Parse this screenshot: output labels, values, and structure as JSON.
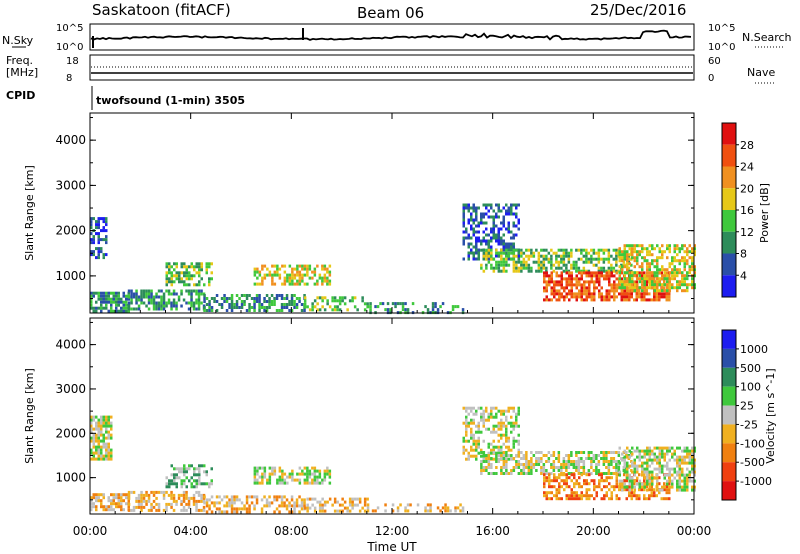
{
  "header": {
    "station": "Saskatoon (fitACF)",
    "beam": "Beam 06",
    "date": "25/Dec/2016"
  },
  "strip_panels": {
    "nsky_label": "N.Sky",
    "nsearch_label": "N.Search",
    "nsky_ticks": [
      "10^5",
      "10^0"
    ],
    "nsearch_ticks": [
      "10^5",
      "10^0"
    ],
    "freq_label_line1": "Freq.",
    "freq_label_line2": "[MHz]",
    "freq_ticks": [
      "18",
      "8"
    ],
    "nave_label": "Nave",
    "nave_ticks": [
      "60",
      "0"
    ],
    "cpid_label": "CPID",
    "cpid_text": "twofsound (1-min) 3505"
  },
  "chart_data": [
    {
      "type": "heatmap",
      "name": "power-panel",
      "parameter": "Power",
      "colorbar_label": "Power [dB]",
      "colorbar_ticks": [
        "4",
        "8",
        "12",
        "16",
        "20",
        "24",
        "28"
      ],
      "colors": [
        "#1d1df0",
        "#2a4fa8",
        "#2d8c5a",
        "#3fc83c",
        "#e6c818",
        "#f09020",
        "#f05010",
        "#e01010"
      ],
      "ylabel": "Slant Range [km]",
      "ylim": [
        180,
        4600
      ],
      "yticks": [
        "1000",
        "2000",
        "3000",
        "4000"
      ],
      "xlabel": "",
      "xticks": [
        "00:00",
        "04:00",
        "08:00",
        "12:00",
        "16:00",
        "20:00",
        "00:00"
      ],
      "xlim_hours": [
        0,
        24
      ],
      "scatter_regions": [
        {
          "t": [
            0.0,
            1.5
          ],
          "r": [
            250,
            650
          ],
          "level": 2,
          "density": 0.75
        },
        {
          "t": [
            0.0,
            0.6
          ],
          "r": [
            1400,
            2300
          ],
          "level": 1,
          "density": 0.65
        },
        {
          "t": [
            1.5,
            4.5
          ],
          "r": [
            280,
            700
          ],
          "level": 2,
          "density": 0.6
        },
        {
          "t": [
            3.0,
            4.8
          ],
          "r": [
            800,
            1300
          ],
          "level": 3,
          "density": 0.55
        },
        {
          "t": [
            4.5,
            8.5
          ],
          "r": [
            250,
            600
          ],
          "level": 2,
          "density": 0.55
        },
        {
          "t": [
            6.5,
            9.5
          ],
          "r": [
            850,
            1250
          ],
          "level": 4,
          "density": 0.6
        },
        {
          "t": [
            8.5,
            11.0
          ],
          "r": [
            250,
            550
          ],
          "level": 3,
          "density": 0.5
        },
        {
          "t": [
            11.0,
            14.8
          ],
          "r": [
            220,
            420
          ],
          "level": 2,
          "density": 0.35
        },
        {
          "t": [
            14.8,
            17.0
          ],
          "r": [
            1400,
            2600
          ],
          "level": 1,
          "density": 0.55
        },
        {
          "t": [
            15.5,
            21.5
          ],
          "r": [
            1100,
            1600
          ],
          "level": 3,
          "density": 0.6
        },
        {
          "t": [
            18.0,
            23.0
          ],
          "r": [
            500,
            1100
          ],
          "level": 6,
          "density": 0.7
        },
        {
          "t": [
            21.0,
            24.0
          ],
          "r": [
            700,
            1700
          ],
          "level": 4,
          "density": 0.65
        }
      ]
    },
    {
      "type": "heatmap",
      "name": "velocity-panel",
      "parameter": "Velocity",
      "colorbar_label": "Velocity [m s^-1]",
      "colorbar_ticks": [
        "1000",
        "500",
        "100",
        "25",
        "-25",
        "-100",
        "-500",
        "-1000"
      ],
      "colors": [
        "#1d1df0",
        "#2a4fa8",
        "#2d8c5a",
        "#3fc83c",
        "#c0c0c0",
        "#f0b020",
        "#f08010",
        "#f04010",
        "#e01010"
      ],
      "ylabel": "Slant Range [km]",
      "ylim": [
        180,
        4600
      ],
      "yticks": [
        "1000",
        "2000",
        "3000",
        "4000"
      ],
      "xlabel": "Time UT",
      "xticks": [
        "00:00",
        "04:00",
        "08:00",
        "12:00",
        "16:00",
        "20:00",
        "00:00"
      ],
      "xlim_hours": [
        0,
        24
      ],
      "scatter_regions": [
        {
          "t": [
            0.0,
            1.5
          ],
          "r": [
            250,
            650
          ],
          "level": 5,
          "density": 0.7
        },
        {
          "t": [
            0.0,
            0.8
          ],
          "r": [
            1400,
            2400
          ],
          "level": 4,
          "density": 0.7
        },
        {
          "t": [
            1.5,
            4.5
          ],
          "r": [
            280,
            700
          ],
          "level": 5,
          "density": 0.55
        },
        {
          "t": [
            3.0,
            4.8
          ],
          "r": [
            800,
            1300
          ],
          "level": 3,
          "density": 0.45
        },
        {
          "t": [
            4.5,
            8.5
          ],
          "r": [
            250,
            600
          ],
          "level": 5,
          "density": 0.5
        },
        {
          "t": [
            6.5,
            9.5
          ],
          "r": [
            850,
            1250
          ],
          "level": 4,
          "density": 0.55
        },
        {
          "t": [
            8.5,
            11.0
          ],
          "r": [
            250,
            550
          ],
          "level": 5,
          "density": 0.45
        },
        {
          "t": [
            11.0,
            14.8
          ],
          "r": [
            220,
            420
          ],
          "level": 5,
          "density": 0.3
        },
        {
          "t": [
            14.8,
            17.0
          ],
          "r": [
            1400,
            2600
          ],
          "level": 4,
          "density": 0.55
        },
        {
          "t": [
            15.5,
            21.5
          ],
          "r": [
            1100,
            1600
          ],
          "level": 4,
          "density": 0.6
        },
        {
          "t": [
            18.0,
            23.0
          ],
          "r": [
            500,
            1100
          ],
          "level": 6,
          "density": 0.55
        },
        {
          "t": [
            21.0,
            24.0
          ],
          "r": [
            700,
            1700
          ],
          "level": 4,
          "density": 0.6
        }
      ]
    }
  ]
}
